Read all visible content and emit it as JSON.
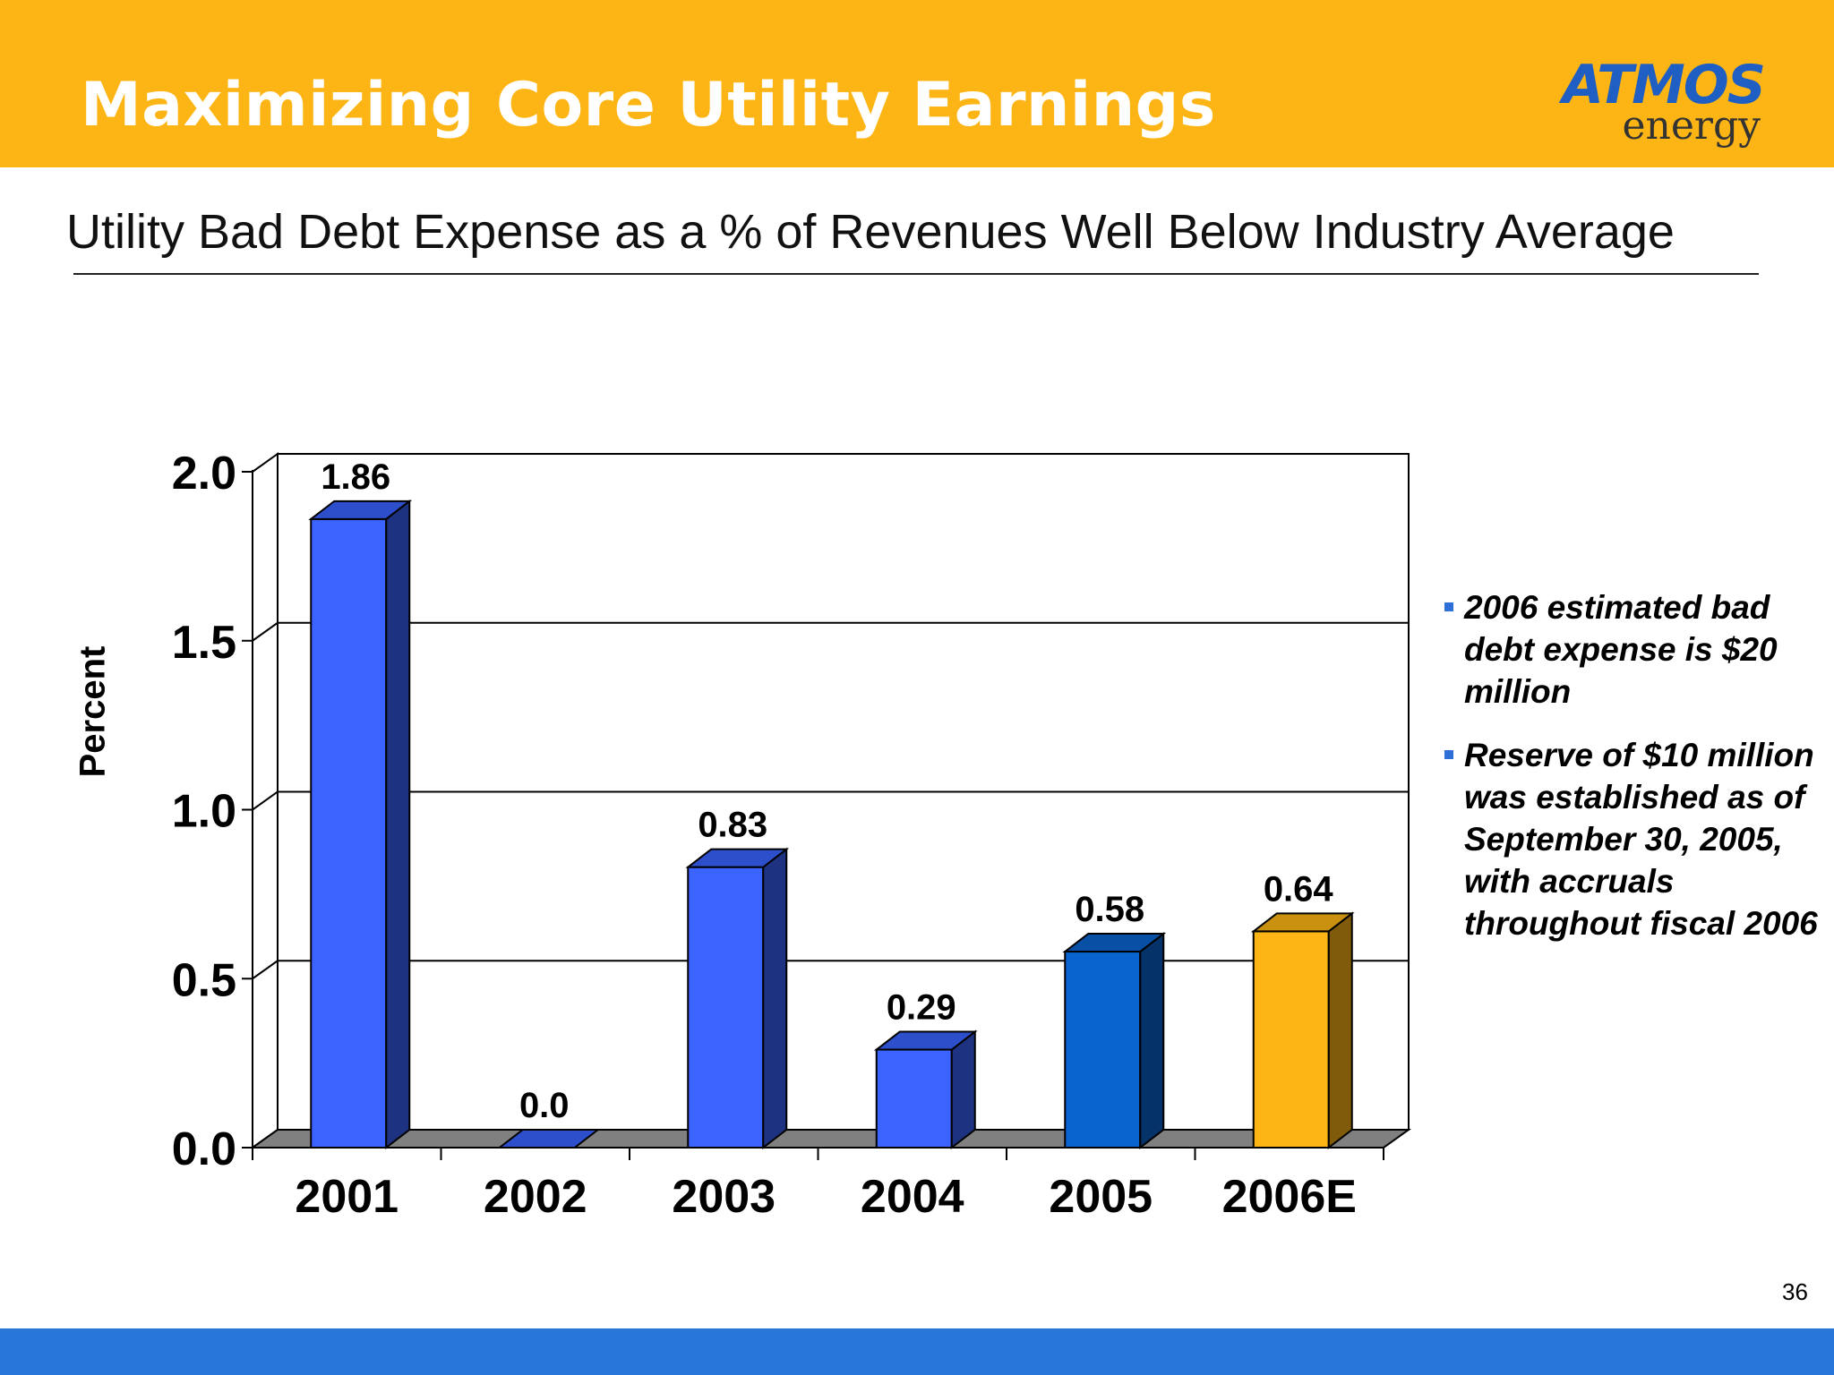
{
  "header": {
    "title": "Maximizing Core Utility Earnings"
  },
  "logo": {
    "brand": "ATMOS",
    "tagline": "energy"
  },
  "subtitle": "Utility Bad Debt Expense as a % of Revenues Well Below Industry Average",
  "colors": {
    "banner": "#fdb515",
    "bar_blue": "#3a63ff",
    "bar_2005": "#0a64cf",
    "bar_estimate": "#fdb515",
    "footer": "#2876d8"
  },
  "chart_data": {
    "type": "bar",
    "title": "",
    "xlabel": "",
    "ylabel": "Percent",
    "categories": [
      "2001",
      "2002",
      "2003",
      "2004",
      "2005",
      "2006E"
    ],
    "values": [
      1.86,
      0.0,
      0.83,
      0.29,
      0.58,
      0.64
    ],
    "data_labels": [
      "1.86",
      "0.0",
      "0.83",
      "0.29",
      "0.58",
      "0.64"
    ],
    "ylim": [
      0,
      2.0
    ],
    "yticks": [
      "0.0",
      "0.5",
      "1.0",
      "1.5",
      "2.0"
    ],
    "grid": true,
    "style": "3d-bars",
    "bar_colors": [
      "#3a63ff",
      "#3a63ff",
      "#3a63ff",
      "#3a63ff",
      "#0a64cf",
      "#fdb515"
    ]
  },
  "bullets": [
    "2006 estimated bad debt expense is $20 million",
    "Reserve of $10 million was established as of September 30, 2005, with accruals throughout fiscal 2006"
  ],
  "footer": {
    "page_number": "36"
  }
}
